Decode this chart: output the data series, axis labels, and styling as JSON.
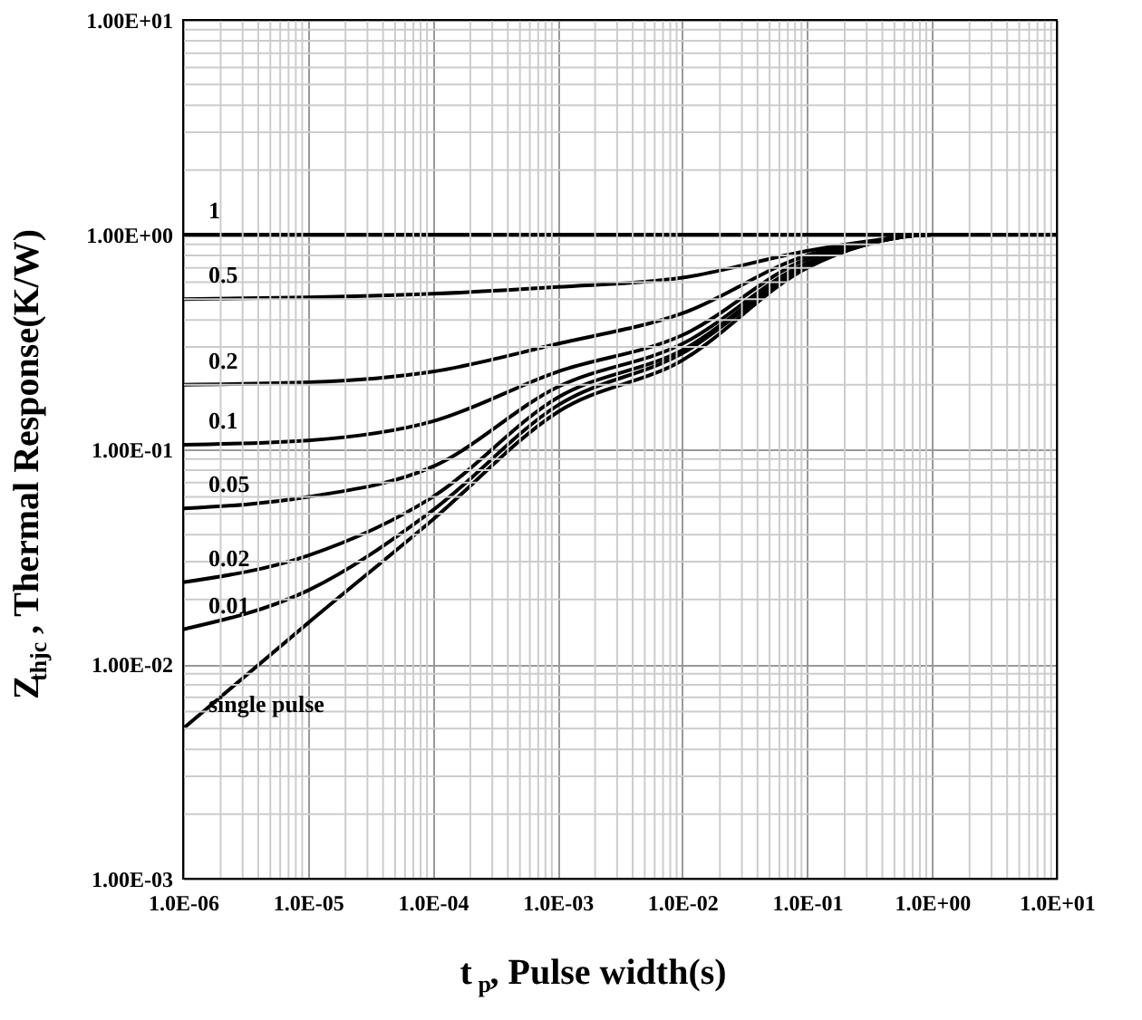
{
  "chart_data": {
    "type": "line",
    "xlabel": "t$_{p}$, Pulse width(s)",
    "ylabel": "Z$_{thjc}$ , Thermal Response(K/W)",
    "log": "xy",
    "grid": true,
    "legend": false,
    "marker": "none",
    "line_style": "solid",
    "xlim": [
      1e-06,
      10
    ],
    "ylim": [
      0.001,
      10
    ],
    "xticks": [
      {
        "value": 1e-06,
        "label": "1.0E-06"
      },
      {
        "value": 1e-05,
        "label": "1.0E-05"
      },
      {
        "value": 0.0001,
        "label": "1.0E-04"
      },
      {
        "value": 0.001,
        "label": "1.0E-03"
      },
      {
        "value": 0.01,
        "label": "1.0E-02"
      },
      {
        "value": 0.1,
        "label": "1.0E-01"
      },
      {
        "value": 1,
        "label": "1.0E+00"
      },
      {
        "value": 10,
        "label": "1.0E+01"
      }
    ],
    "yticks": [
      {
        "value": 0.001,
        "label": "1.00E-03"
      },
      {
        "value": 0.01,
        "label": "1.00E-02"
      },
      {
        "value": 0.1,
        "label": "1.00E-01"
      },
      {
        "value": 1,
        "label": "1.00E+00"
      },
      {
        "value": 10,
        "label": "1.00E+01"
      }
    ],
    "x": [
      1e-06,
      1e-05,
      0.0001,
      0.001,
      0.01,
      0.1,
      0.3,
      1,
      10
    ],
    "series": [
      {
        "name": "1",
        "color": "#000000",
        "values": [
          1,
          1,
          1,
          1,
          1,
          1,
          1,
          1,
          1
        ]
      },
      {
        "name": "0.5",
        "color": "#000000",
        "values": [
          0.5,
          0.51,
          0.53,
          0.57,
          0.63,
          0.84,
          0.93,
          1,
          1
        ]
      },
      {
        "name": "0.2",
        "color": "#000000",
        "values": [
          0.2,
          0.205,
          0.23,
          0.31,
          0.43,
          0.8,
          0.92,
          1,
          1
        ]
      },
      {
        "name": "0.1",
        "color": "#000000",
        "values": [
          0.105,
          0.11,
          0.135,
          0.23,
          0.34,
          0.77,
          0.91,
          1,
          1
        ]
      },
      {
        "name": "0.05",
        "color": "#000000",
        "values": [
          0.053,
          0.06,
          0.083,
          0.195,
          0.31,
          0.74,
          0.91,
          1,
          1
        ]
      },
      {
        "name": "0.02",
        "color": "#000000",
        "values": [
          0.024,
          0.032,
          0.06,
          0.174,
          0.29,
          0.72,
          0.9,
          1,
          1
        ]
      },
      {
        "name": "0.01",
        "color": "#000000",
        "values": [
          0.0145,
          0.022,
          0.052,
          0.16,
          0.28,
          0.71,
          0.9,
          1,
          1
        ]
      },
      {
        "name": "single pulse",
        "color": "#000000",
        "values": [
          0.005,
          0.0155,
          0.047,
          0.149,
          0.26,
          0.7,
          0.9,
          1,
          1
        ]
      }
    ]
  }
}
